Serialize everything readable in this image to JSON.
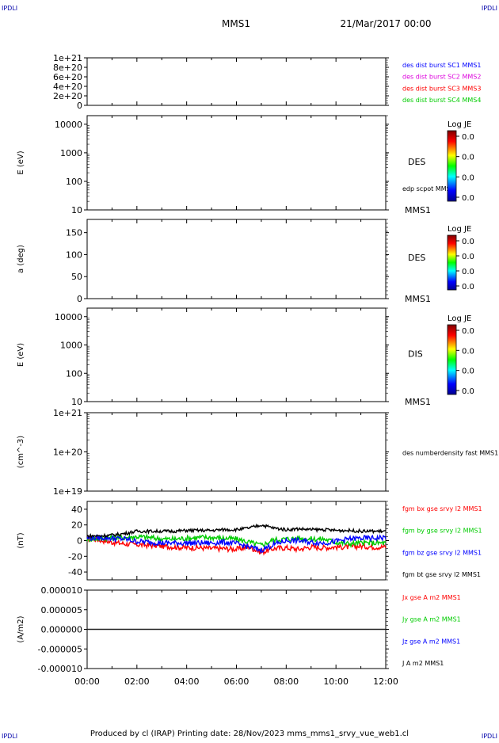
{
  "corners": {
    "tl": "IPDLI",
    "tr": "IPDLI",
    "bl": "IPDLI",
    "br": "IPDLI"
  },
  "header": {
    "spacecraft": "MMS1",
    "date": "21/Mar/2017 00:00"
  },
  "footer": {
    "text": "Produced by cl (IRAP)   Printing date: 28/Nov/2023   mms_mms1_srvy_vue_web1.cl"
  },
  "colors": {
    "red": "#ff0000",
    "green": "#00cc00",
    "blue": "#0000ff",
    "black": "#000000",
    "magenta": "#dd00dd"
  },
  "colorbars": [
    {
      "title": "Log JE",
      "ticks": [
        "0.0",
        "0.0",
        "0.0",
        "0.0"
      ]
    },
    {
      "title": "Log JE",
      "ticks": [
        "0.0",
        "0.0",
        "0.0",
        "0.0"
      ]
    },
    {
      "title": "Log JE",
      "ticks": [
        "0.0",
        "0.0",
        "0.0",
        "0.0"
      ]
    }
  ],
  "chart_data": [
    {
      "type": "line",
      "x_range": [
        "00:00",
        "12:00"
      ],
      "yticks": [
        "1e+21",
        "8e+20",
        "6e+20",
        "4e+20",
        "2e+20",
        "0"
      ],
      "ylim": [
        0,
        1e+21
      ],
      "ylabel": "",
      "legend": [
        {
          "text": "des dist burst SC1 MMS1",
          "color": "#0000ff"
        },
        {
          "text": "des dist burst SC2 MMS2",
          "color": "#dd00dd"
        },
        {
          "text": "des dist burst SC3 MMS3",
          "color": "#ff0000"
        },
        {
          "text": "des dist burst SC4 MMS4",
          "color": "#00cc00"
        }
      ],
      "series": [
        {
          "name": "des dist burst SC1 MMS1",
          "values": [
            0,
            0
          ]
        }
      ]
    },
    {
      "type": "heatmap",
      "ylabel": "E (eV)",
      "yticks": [
        "10000",
        "1000",
        "100",
        "10"
      ],
      "yscale": "log",
      "ylim": [
        10,
        20000
      ],
      "labels": {
        "name": "DES",
        "sub": "edp scpot MMS1",
        "tag": "MMS1"
      }
    },
    {
      "type": "heatmap",
      "ylabel": "a (deg)",
      "yticks": [
        "150",
        "100",
        "50",
        "0"
      ],
      "ylim": [
        0,
        180
      ],
      "labels": {
        "name": "DES",
        "tag": "MMS1"
      }
    },
    {
      "type": "heatmap",
      "ylabel": "E (eV)",
      "yticks": [
        "10000",
        "1000",
        "100",
        "10"
      ],
      "yscale": "log",
      "ylim": [
        10,
        20000
      ],
      "labels": {
        "name": "DIS",
        "tag": "MMS1"
      }
    },
    {
      "type": "line",
      "ylabel": "(cm^-3)",
      "yticks": [
        "1e+21",
        "1e+20",
        "1e+19"
      ],
      "yscale": "log",
      "ylim": [
        1e+19,
        1e+21
      ],
      "legend": [
        {
          "text": "des numberdensity fast MMS1",
          "color": "#000000"
        }
      ]
    },
    {
      "type": "line",
      "ylabel": "(nT)",
      "yticks": [
        "40",
        "20",
        "0",
        "-20",
        "-40"
      ],
      "ylim": [
        -50,
        50
      ],
      "x_hours": [
        0,
        0.5,
        1,
        1.5,
        2,
        2.5,
        3,
        3.5,
        4,
        4.5,
        5,
        5.5,
        6,
        6.5,
        7,
        7.5,
        8,
        8.5,
        9,
        9.5,
        10,
        10.5,
        11,
        11.5,
        12
      ],
      "legend": [
        {
          "text": "fgm bx gse srvy l2 MMS1",
          "color": "#ff0000"
        },
        {
          "text": "fgm by gse srvy l2 MMS1",
          "color": "#00cc00"
        },
        {
          "text": "fgm bz gse srvy l2 MMS1",
          "color": "#0000ff"
        },
        {
          "text": "fgm bt gse srvy l2 MMS1",
          "color": "#000000"
        }
      ],
      "series": [
        {
          "name": "fgm bx gse srvy l2 MMS1",
          "values": [
            3,
            1,
            -2,
            -4,
            -5,
            -6,
            -7,
            -8,
            -9,
            -9,
            -10,
            -10,
            -11,
            -8,
            -15,
            -10,
            -9,
            -11,
            -8,
            -9,
            -8,
            -8,
            -7,
            -8,
            -8
          ]
        },
        {
          "name": "fgm by gse srvy l2 MMS1",
          "values": [
            2,
            3,
            4,
            4,
            5,
            4,
            2,
            2,
            3,
            4,
            4,
            3,
            2,
            -2,
            -6,
            1,
            2,
            3,
            2,
            2,
            -2,
            -4,
            -3,
            -3,
            -3
          ]
        },
        {
          "name": "fgm bz gse srvy l2 MMS1",
          "values": [
            3,
            4,
            3,
            2,
            -1,
            -2,
            -3,
            -3,
            -3,
            -3,
            -3,
            -2,
            -4,
            -8,
            -12,
            -5,
            0,
            0,
            -2,
            -3,
            -1,
            2,
            3,
            3,
            4
          ]
        },
        {
          "name": "fgm bt gse srvy l2 MMS1",
          "values": [
            6,
            6,
            7,
            9,
            12,
            12,
            12,
            12,
            13,
            13,
            13,
            14,
            14,
            16,
            20,
            16,
            14,
            15,
            14,
            14,
            13,
            13,
            12,
            12,
            12
          ]
        }
      ]
    },
    {
      "type": "line",
      "ylabel": "(A/m2)",
      "yticks": [
        "0.000010",
        "0.000005",
        "0.000000",
        "-0.000005",
        "-0.000010"
      ],
      "ylim": [
        -1e-05,
        1e-05
      ],
      "xticks": [
        "00:00",
        "02:00",
        "04:00",
        "06:00",
        "08:00",
        "10:00",
        "12:00"
      ],
      "legend": [
        {
          "text": "Jx gse A m2 MMS1",
          "color": "#ff0000"
        },
        {
          "text": "Jy gse A m2 MMS1",
          "color": "#00cc00"
        },
        {
          "text": "Jz gse A m2 MMS1",
          "color": "#0000ff"
        },
        {
          "text": "J A m2 MMS1",
          "color": "#000000"
        }
      ],
      "series": [
        {
          "name": "J A m2 MMS1",
          "values": [
            0,
            0
          ]
        }
      ]
    }
  ]
}
